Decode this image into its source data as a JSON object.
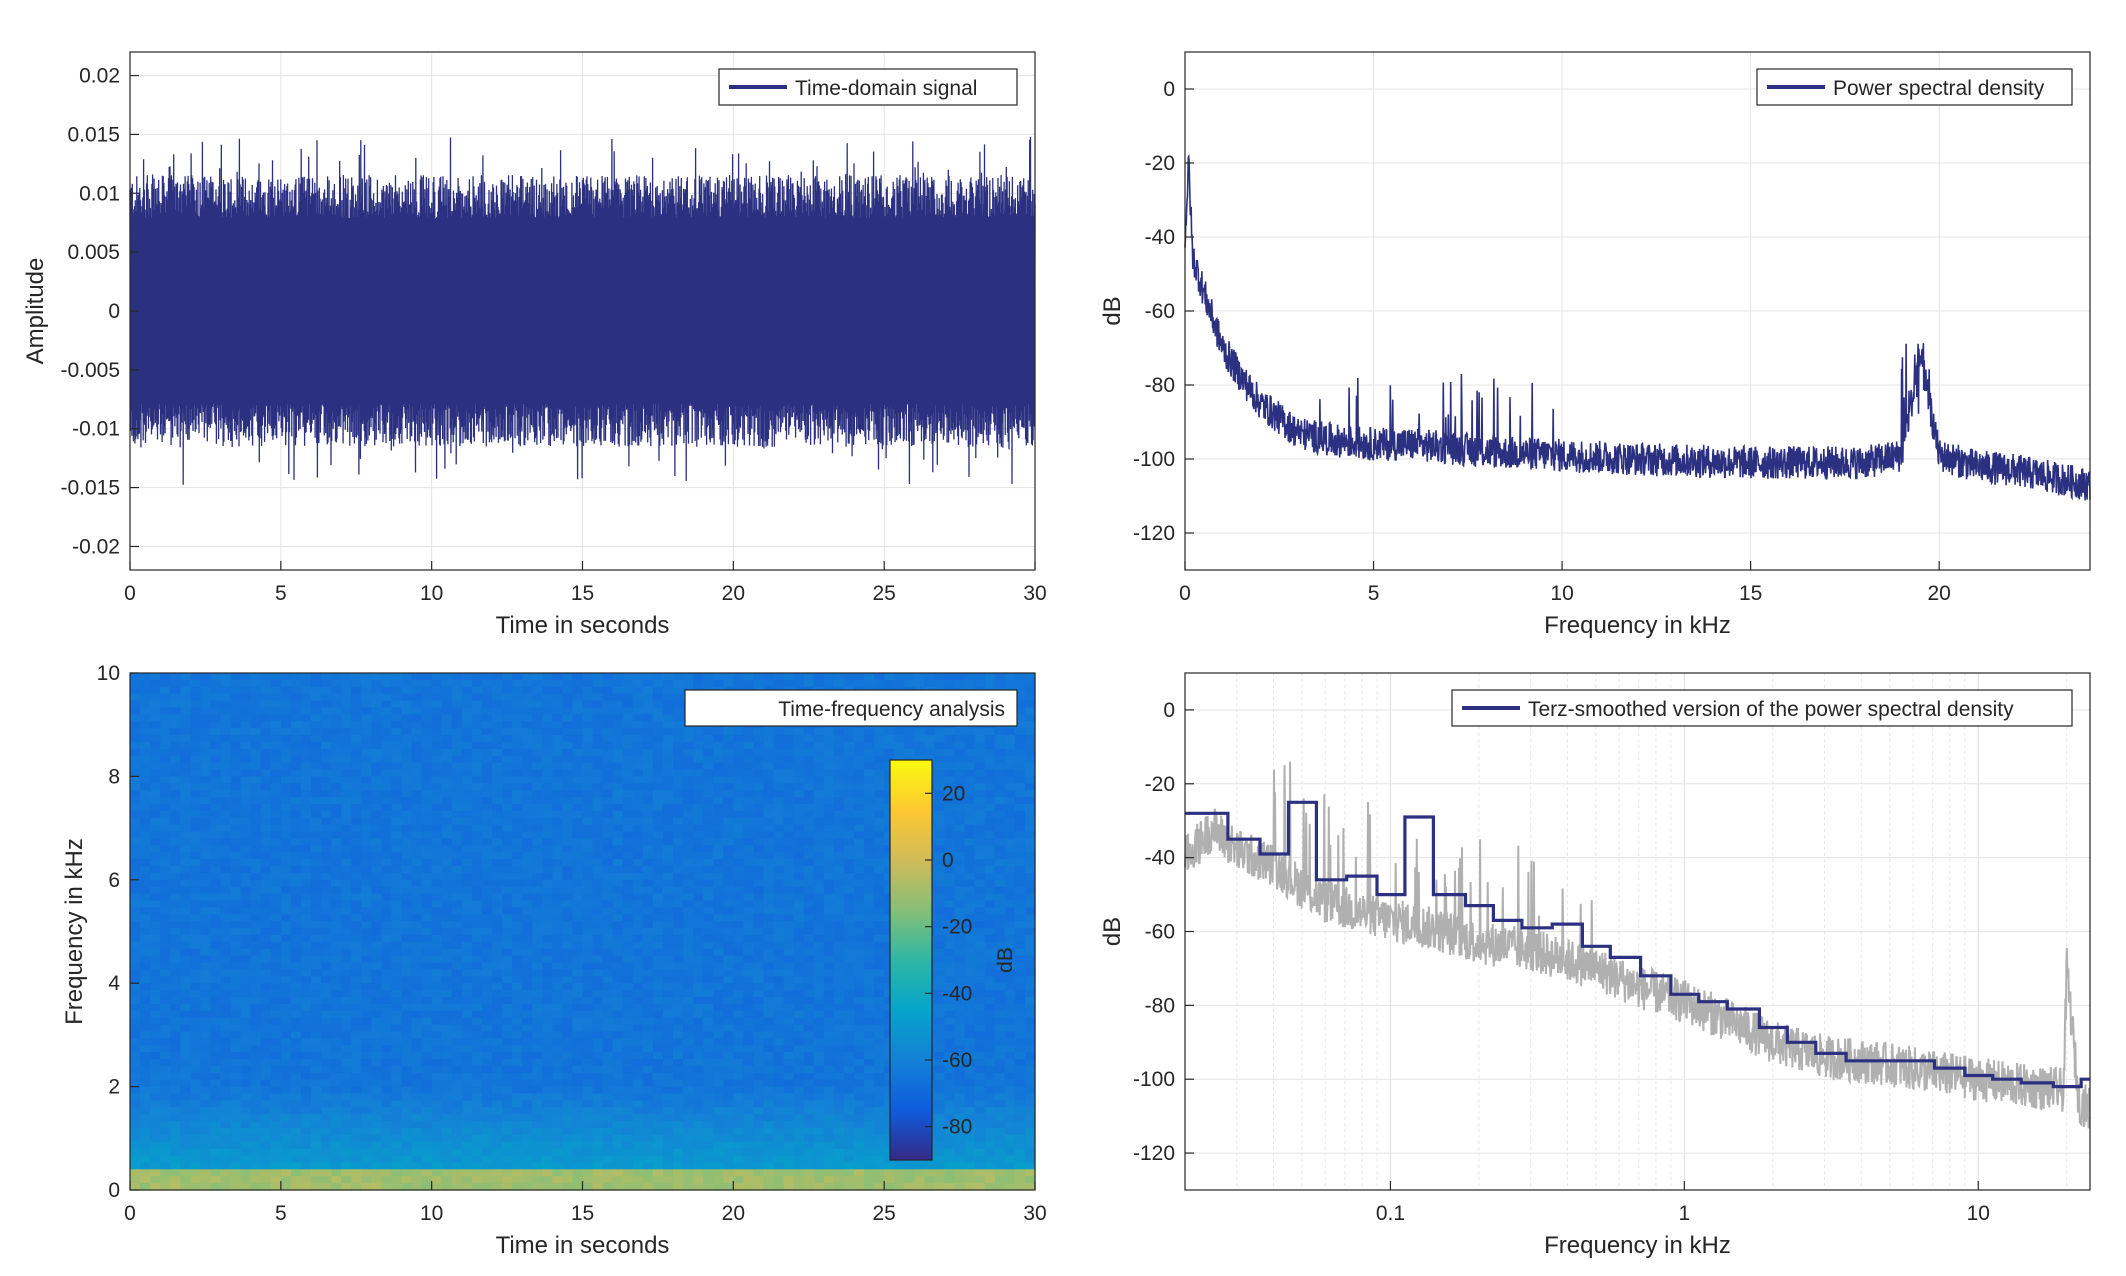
{
  "chart_data": [
    {
      "type": "line",
      "panel": "time-domain",
      "legend": [
        "Time-domain signal"
      ],
      "legend_location": "top-right",
      "xlabel": "Time in seconds",
      "ylabel": "Amplitude",
      "xlim": [
        0,
        30
      ],
      "ylim": [
        -0.022,
        0.022
      ],
      "xticks": [
        0,
        5,
        10,
        15,
        20,
        25,
        30
      ],
      "yticks": [
        -0.02,
        -0.015,
        -0.01,
        -0.005,
        0,
        0.005,
        0.01,
        0.015,
        0.02
      ],
      "ytick_labels": [
        "-0.02",
        "-0.015",
        "-0.01",
        "-0.005",
        "0",
        "0.005",
        "0.01",
        "0.015",
        "0.02"
      ],
      "grid": true,
      "envelope": {
        "typical_peak": 0.0105,
        "max_peak": 0.0148,
        "min_peak": -0.0183
      },
      "color": "#2b3080"
    },
    {
      "type": "line",
      "panel": "psd",
      "legend": [
        "Power spectral density"
      ],
      "legend_location": "top-right",
      "xlabel": "Frequency in kHz",
      "ylabel": "dB",
      "xlim": [
        0,
        24
      ],
      "ylim": [
        -130,
        10
      ],
      "xticks": [
        0,
        5,
        10,
        15,
        20
      ],
      "yticks": [
        -120,
        -100,
        -80,
        -60,
        -40,
        -20,
        0
      ],
      "grid": true,
      "x": [
        0,
        0.1,
        0.2,
        0.5,
        1,
        1.5,
        2,
        3,
        4,
        5,
        6,
        8,
        10,
        12,
        15,
        18,
        19,
        19.5,
        20,
        21,
        22,
        23,
        24
      ],
      "y": [
        -40,
        -20,
        -45,
        -55,
        -70,
        -78,
        -85,
        -93,
        -95,
        -96,
        -96,
        -98,
        -99,
        -100,
        -101,
        -101,
        -99,
        -72,
        -99,
        -102,
        -103,
        -105,
        -107
      ],
      "color": "#2b3080"
    },
    {
      "type": "heatmap",
      "panel": "spectrogram",
      "legend": [
        "Time-frequency analysis"
      ],
      "legend_location": "top-right",
      "xlabel": "Time in seconds",
      "ylabel": "Frequency in kHz",
      "xlim": [
        0,
        30
      ],
      "ylim": [
        0,
        10
      ],
      "xticks": [
        0,
        5,
        10,
        15,
        20,
        25,
        30
      ],
      "yticks": [
        0,
        2,
        4,
        6,
        8,
        10
      ],
      "colorbar": {
        "label": "dB",
        "range": [
          -90,
          30
        ],
        "ticks": [
          -80,
          -60,
          -40,
          -20,
          0,
          20
        ]
      },
      "levels": {
        "background": -65,
        "low_band": -45,
        "lowest_band": -10
      }
    },
    {
      "type": "line",
      "panel": "terz-smoothed",
      "legend": [
        "Terz-smoothed version of the power spectral density"
      ],
      "legend_location": "top-right",
      "xlabel": "Frequency in kHz",
      "ylabel": "dB",
      "xscale": "log",
      "xlim": [
        0.02,
        24
      ],
      "ylim": [
        -130,
        10
      ],
      "xticks": [
        0.1,
        1,
        10
      ],
      "yticks": [
        -120,
        -100,
        -80,
        -60,
        -40,
        -20,
        0
      ],
      "grid": true,
      "series": [
        {
          "name": "Terz-smoothed version of the power spectral density",
          "color": "#2b3080",
          "edges": [
            0.02,
            0.028,
            0.036,
            0.045,
            0.056,
            0.071,
            0.09,
            0.112,
            0.14,
            0.18,
            0.224,
            0.28,
            0.355,
            0.45,
            0.56,
            0.71,
            0.9,
            1.12,
            1.4,
            1.8,
            2.24,
            2.8,
            3.55,
            4.5,
            5.6,
            7.1,
            9,
            11.2,
            14,
            18,
            22.4,
            24
          ],
          "values": [
            -28,
            -35,
            -39,
            -25,
            -46,
            -45,
            -50,
            -29,
            -50,
            -53,
            -57,
            -59,
            -58,
            -64,
            -67,
            -72,
            -77,
            -79,
            -81,
            -86,
            -90,
            -93,
            -95,
            -95,
            -95,
            -97,
            -99,
            -100,
            -101,
            -102,
            -100
          ]
        },
        {
          "name": "",
          "color": "#b0b0b0",
          "x": [
            0.02,
            0.025,
            0.03,
            0.04,
            0.05,
            0.06,
            0.08,
            0.1,
            0.12,
            0.15,
            0.2,
            0.3,
            0.5,
            0.7,
            1,
            1.5,
            2,
            3,
            5,
            7,
            10,
            15,
            19.5,
            20,
            22,
            24
          ],
          "y": [
            -40,
            -32,
            -38,
            -42,
            -48,
            -52,
            -55,
            -57,
            -58,
            -60,
            -63,
            -65,
            -70,
            -75,
            -79,
            -85,
            -90,
            -94,
            -96,
            -98,
            -100,
            -102,
            -103,
            -70,
            -106,
            -108
          ]
        }
      ]
    }
  ]
}
